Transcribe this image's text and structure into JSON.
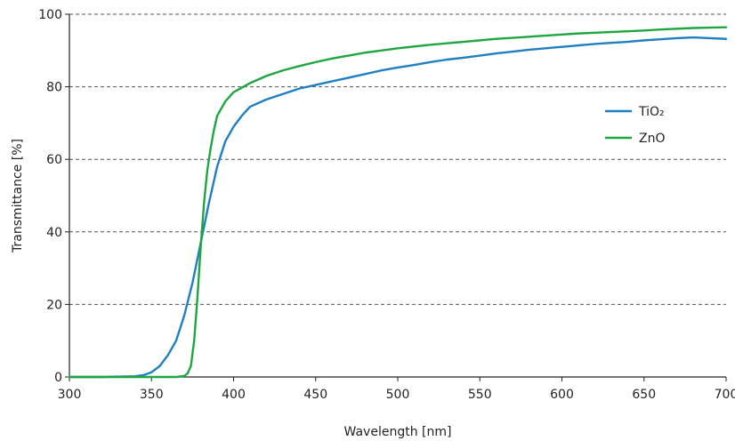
{
  "chart_data": {
    "type": "line",
    "title": "",
    "xlabel": "Wavelength [nm]",
    "ylabel": "Transmittance [%]",
    "xlim": [
      300,
      700
    ],
    "ylim": [
      0,
      100
    ],
    "xticks": [
      300,
      350,
      400,
      450,
      500,
      550,
      600,
      650,
      700
    ],
    "yticks": [
      0,
      20,
      40,
      60,
      80,
      100
    ],
    "grid": "horizontal dashed",
    "legend": "right",
    "colors": {
      "TiO2": "#1f7fc2",
      "ZnO": "#1fa640"
    },
    "series": [
      {
        "name": "TiO₂",
        "key": "TiO2",
        "x": [
          300,
          320,
          340,
          345,
          350,
          355,
          360,
          365,
          370,
          375,
          380,
          385,
          390,
          395,
          400,
          405,
          410,
          420,
          430,
          440,
          450,
          460,
          470,
          480,
          490,
          500,
          510,
          520,
          530,
          540,
          550,
          560,
          570,
          580,
          590,
          600,
          610,
          620,
          630,
          640,
          650,
          660,
          670,
          680,
          690,
          700
        ],
        "values": [
          0,
          0,
          0.2,
          0.5,
          1.3,
          3,
          6,
          10,
          17,
          26,
          37,
          48,
          58,
          65,
          69,
          72,
          74.5,
          76.5,
          78,
          79.5,
          80.5,
          81.5,
          82.5,
          83.5,
          84.5,
          85.3,
          86,
          86.8,
          87.5,
          88,
          88.6,
          89.2,
          89.7,
          90.2,
          90.6,
          91,
          91.4,
          91.8,
          92.1,
          92.4,
          92.8,
          93.1,
          93.4,
          93.6,
          93.4,
          93.2
        ]
      },
      {
        "name": "ZnO",
        "key": "ZnO",
        "x": [
          300,
          350,
          365,
          370,
          372,
          374,
          376,
          378,
          380,
          382,
          384,
          386,
          388,
          390,
          395,
          400,
          410,
          420,
          430,
          440,
          450,
          460,
          470,
          480,
          490,
          500,
          510,
          520,
          530,
          540,
          550,
          560,
          570,
          580,
          590,
          600,
          610,
          620,
          630,
          640,
          650,
          660,
          670,
          680,
          690,
          700
        ],
        "values": [
          0,
          0,
          0,
          0.3,
          1,
          3,
          10,
          22,
          36,
          48,
          57,
          63,
          68,
          72,
          76,
          78.5,
          81,
          83,
          84.5,
          85.7,
          86.8,
          87.8,
          88.6,
          89.4,
          90,
          90.6,
          91.1,
          91.6,
          92,
          92.4,
          92.8,
          93.2,
          93.5,
          93.8,
          94.1,
          94.4,
          94.7,
          94.9,
          95.1,
          95.3,
          95.5,
          95.8,
          96,
          96.2,
          96.3,
          96.4
        ]
      }
    ]
  }
}
